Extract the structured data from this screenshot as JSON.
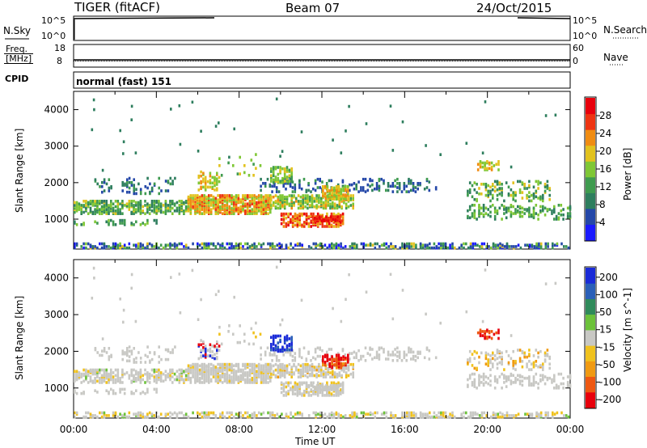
{
  "header": {
    "title": "TIGER (fitACF)",
    "beam": "Beam 07",
    "date": "24/Oct/2015"
  },
  "params": {
    "nsky_label": "N.Sky",
    "nsky_ticks": [
      "10^5",
      "10^0"
    ],
    "nsearch_label": "N.Search",
    "freq_label_1": "Freq.",
    "freq_label_2": "[MHz]",
    "freq_ticks": [
      "18",
      "8"
    ],
    "nave_label": "Nave",
    "nave_ticks": [
      "60",
      "0"
    ],
    "cpid_label": "CPID",
    "cpid_text": "normal (fast) 151",
    "colors": {
      "trace": "#000000",
      "dots": "#000000"
    }
  },
  "chart_data": [
    {
      "type": "heatmap",
      "title": "",
      "quantity": "Power",
      "xlabel": "Time UT",
      "ylabel": "Slant Range [km]",
      "x_ticks": [
        "00:00",
        "04:00",
        "08:00",
        "12:00",
        "16:00",
        "20:00",
        "00:00"
      ],
      "x_range_hours": [
        0,
        24
      ],
      "y_ticks": [
        "1000",
        "2000",
        "3000",
        "4000"
      ],
      "y_range_km": [
        180,
        4500
      ],
      "grid": false,
      "colorbar": {
        "label": "Power [dB]",
        "ticks": [
          "4",
          "8",
          "12",
          "16",
          "20",
          "24",
          "28"
        ],
        "range": [
          0,
          30
        ],
        "colors": [
          "#1a1aff",
          "#2447a8",
          "#2e7e5e",
          "#3f9b4f",
          "#7fc735",
          "#e2c21e",
          "#f08c12",
          "#ee3412",
          "#e8000c"
        ]
      },
      "regions": [
        {
          "t": [
            0.0,
            13.5
          ],
          "r": [
            1100,
            1650
          ],
          "level": "high-mid"
        },
        {
          "t": [
            5.5,
            9.5
          ],
          "r": [
            1150,
            1600
          ],
          "level": "high"
        },
        {
          "t": [
            10.0,
            13.0
          ],
          "r": [
            800,
            1150
          ],
          "level": "high"
        },
        {
          "t": [
            0.0,
            24.0
          ],
          "r": [
            200,
            350
          ],
          "level": "low"
        },
        {
          "t": [
            9.0,
            17.5
          ],
          "r": [
            1750,
            2150
          ],
          "level": "low"
        },
        {
          "t": [
            19.0,
            24.0
          ],
          "r": [
            1000,
            2100
          ],
          "level": "low-mid"
        }
      ]
    },
    {
      "type": "heatmap",
      "title": "",
      "quantity": "Velocity",
      "xlabel": "Time UT",
      "ylabel": "Slant Range [km]",
      "x_ticks": [
        "00:00",
        "04:00",
        "08:00",
        "12:00",
        "16:00",
        "20:00",
        "00:00"
      ],
      "x_range_hours": [
        0,
        24
      ],
      "y_ticks": [
        "1000",
        "2000",
        "3000",
        "4000"
      ],
      "y_range_km": [
        180,
        4500
      ],
      "grid": false,
      "colorbar": {
        "label": "Velocity [m s^-1]",
        "ticks": [
          "200",
          "100",
          "50",
          "15",
          "-15",
          "-50",
          "-100",
          "-200"
        ],
        "colors": [
          "#1a2bd8",
          "#2a5fb8",
          "#2f8a5a",
          "#6cc23a",
          "#c8c8c4",
          "#f0c21e",
          "#f09a12",
          "#ee5812",
          "#e8000c"
        ]
      },
      "regions": [
        {
          "t": [
            0.0,
            13.5
          ],
          "r": [
            1100,
            1650
          ],
          "level": "near-zero"
        },
        {
          "t": [
            9.5,
            10.5
          ],
          "r": [
            2000,
            2450
          ],
          "level": "positive"
        },
        {
          "t": [
            12.0,
            13.3
          ],
          "r": [
            1550,
            1900
          ],
          "level": "negative"
        },
        {
          "t": [
            0.0,
            24.0
          ],
          "r": [
            200,
            350
          ],
          "level": "near-zero-negative"
        },
        {
          "t": [
            19.0,
            24.0
          ],
          "r": [
            1000,
            2100
          ],
          "level": "near-zero"
        }
      ]
    }
  ]
}
